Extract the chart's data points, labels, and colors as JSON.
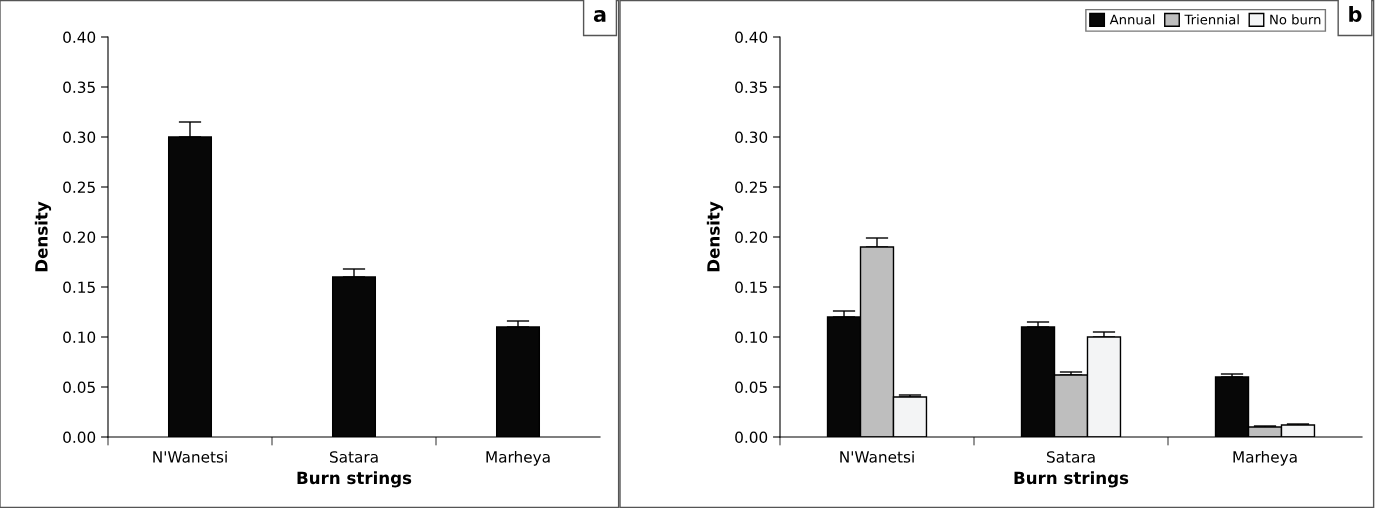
{
  "chart_data": [
    {
      "type": "bar",
      "xlabel": "Burn strings",
      "ylabel": "Density",
      "annotations": [
        "a"
      ],
      "categories": [
        "N'Wanetsi",
        "Satara",
        "Marheya"
      ],
      "series": [
        {
          "color": "#070707",
          "values": [
            0.3,
            0.16,
            0.11
          ],
          "errors": [
            [
              0.3,
              0.315
            ],
            [
              0.16,
              0.168
            ],
            [
              0.11,
              0.116
            ]
          ]
        }
      ],
      "ylim": [
        0,
        0.4
      ],
      "yticks": [
        {
          "value": 0,
          "label": "0.00"
        },
        {
          "value": 0.05,
          "label": "0.05"
        },
        {
          "value": 0.1,
          "label": "0.10"
        },
        {
          "value": 0.15,
          "label": "0.15"
        },
        {
          "value": 0.2,
          "label": "0.20"
        },
        {
          "value": 0.25,
          "label": "0.25"
        },
        {
          "value": 0.3,
          "label": "0.30"
        },
        {
          "value": 0.35,
          "label": "0.35"
        },
        {
          "value": 0.4,
          "label": "0.40"
        }
      ],
      "grid": false,
      "legend": false
    },
    {
      "type": "bar",
      "xlabel": "Burn strings",
      "ylabel": "Density",
      "annotations": [
        "b"
      ],
      "categories": [
        "N'Wanetsi",
        "Satara",
        "Marheya"
      ],
      "series": [
        {
          "name": "Annual",
          "color": "#070707",
          "values": [
            0.12,
            0.11,
            0.06
          ],
          "errors": [
            [
              0.12,
              0.126
            ],
            [
              0.11,
              0.115
            ],
            [
              0.06,
              0.063
            ]
          ]
        },
        {
          "name": "Triennial",
          "color": "#bebebe",
          "values": [
            0.19,
            0.062,
            0.01
          ],
          "errors": [
            [
              0.19,
              0.199
            ],
            [
              0.062,
              0.065
            ],
            [
              0.01,
              0.011
            ]
          ]
        },
        {
          "name": "No burn",
          "color": "#f3f4f5",
          "values": [
            0.04,
            0.1,
            0.012
          ],
          "errors": [
            [
              0.04,
              0.042
            ],
            [
              0.1,
              0.105
            ],
            [
              0.012,
              0.013
            ]
          ]
        }
      ],
      "ylim": [
        0,
        0.4
      ],
      "yticks": [
        {
          "value": 0,
          "label": "0.00"
        },
        {
          "value": 0.05,
          "label": "0.05"
        },
        {
          "value": 0.1,
          "label": "0.10"
        },
        {
          "value": 0.15,
          "label": "0.15"
        },
        {
          "value": 0.2,
          "label": "0.20"
        },
        {
          "value": 0.25,
          "label": "0.25"
        },
        {
          "value": 0.3,
          "label": "0.30"
        },
        {
          "value": 0.35,
          "label": "0.35"
        },
        {
          "value": 0.4,
          "label": "0.40"
        }
      ],
      "grid": false,
      "legend": "top right"
    }
  ]
}
